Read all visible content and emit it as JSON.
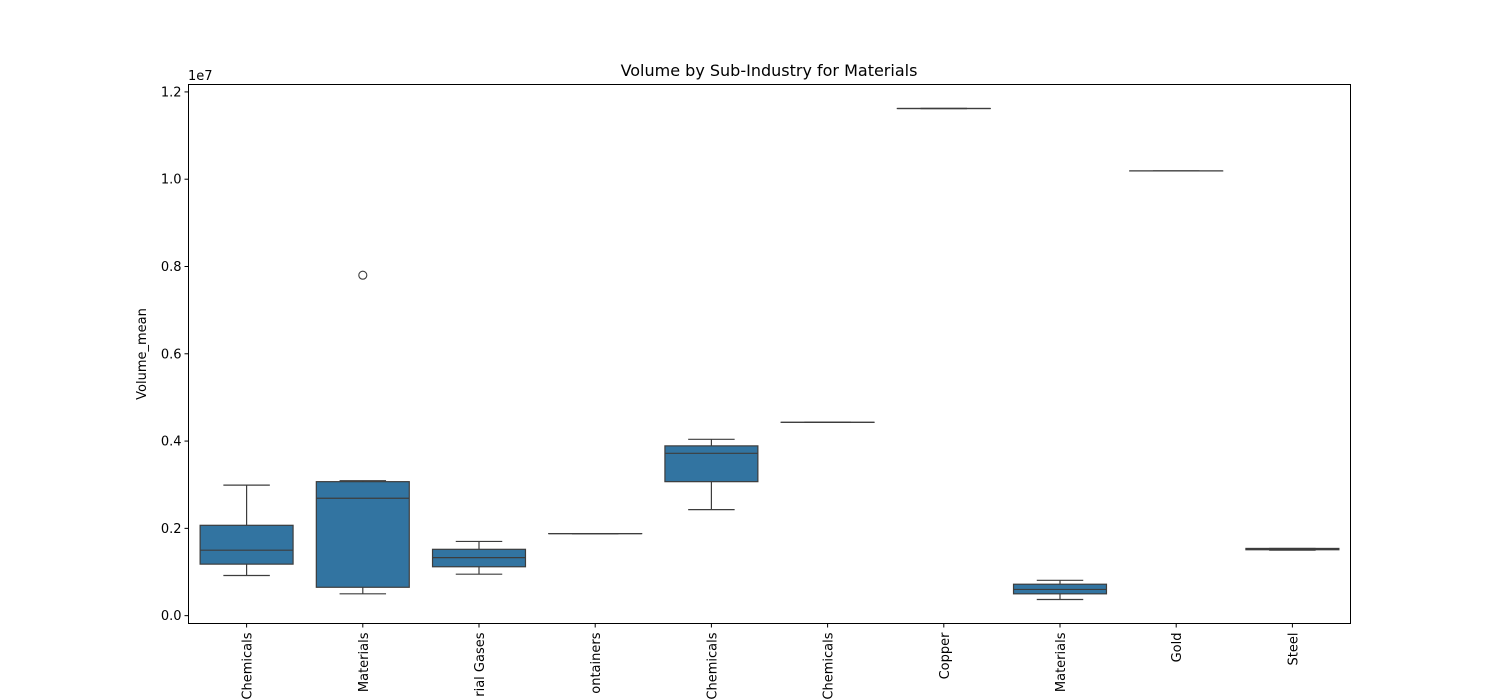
{
  "chart_data": {
    "type": "box",
    "title": "Volume by Sub-Industry for Materials",
    "xlabel": "",
    "ylabel": "Volume_mean",
    "y_offset_label": "1e7",
    "y_scale": 10000000,
    "ylim": [
      -0.018,
      1.217
    ],
    "yticks": [
      0.0,
      0.2,
      0.4,
      0.6,
      0.8,
      1.0,
      1.2
    ],
    "ytick_labels": [
      "0.0",
      "0.2",
      "0.4",
      "0.6",
      "0.8",
      "1.0",
      "1.2"
    ],
    "box_color": "#3274a1",
    "line_color": "#3d3d3d",
    "categories": [
      "Chemicals",
      "Materials",
      "rial Gases",
      "ontainers",
      "Chemicals",
      "Chemicals",
      "Copper",
      "Materials",
      "Gold",
      "Steel"
    ],
    "boxes": [
      {
        "whisker_low": 0.092,
        "q1": 0.118,
        "median": 0.15,
        "q3": 0.207,
        "whisker_high": 0.299,
        "outliers": []
      },
      {
        "whisker_low": 0.05,
        "q1": 0.065,
        "median": 0.269,
        "q3": 0.307,
        "whisker_high": 0.309,
        "outliers": [
          0.78
        ]
      },
      {
        "whisker_low": 0.095,
        "q1": 0.112,
        "median": 0.133,
        "q3": 0.152,
        "whisker_high": 0.17,
        "outliers": []
      },
      {
        "whisker_low": 0.188,
        "q1": 0.188,
        "median": 0.188,
        "q3": 0.188,
        "whisker_high": 0.188,
        "outliers": []
      },
      {
        "whisker_low": 0.243,
        "q1": 0.307,
        "median": 0.372,
        "q3": 0.389,
        "whisker_high": 0.404,
        "outliers": []
      },
      {
        "whisker_low": 0.443,
        "q1": 0.443,
        "median": 0.443,
        "q3": 0.443,
        "whisker_high": 0.443,
        "outliers": []
      },
      {
        "whisker_low": 1.162,
        "q1": 1.162,
        "median": 1.162,
        "q3": 1.162,
        "whisker_high": 1.162,
        "outliers": []
      },
      {
        "whisker_low": 0.037,
        "q1": 0.05,
        "median": 0.06,
        "q3": 0.072,
        "whisker_high": 0.081,
        "outliers": []
      },
      {
        "whisker_low": 1.019,
        "q1": 1.019,
        "median": 1.019,
        "q3": 1.019,
        "whisker_high": 1.019,
        "outliers": []
      },
      {
        "whisker_low": 0.15,
        "q1": 0.151,
        "median": 0.152,
        "q3": 0.154,
        "whisker_high": 0.154,
        "outliers": []
      }
    ]
  }
}
